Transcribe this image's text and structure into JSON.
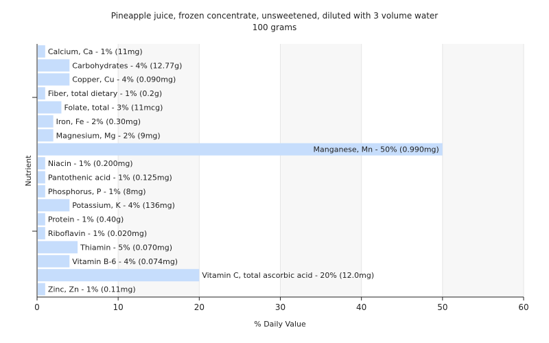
{
  "chart_data": {
    "type": "bar",
    "orientation": "horizontal",
    "title": "Pineapple juice, frozen concentrate, unsweetened, diluted with 3 volume water",
    "subtitle": "100 grams",
    "xlabel": "% Daily Value",
    "ylabel": "Nutrient",
    "xlim": [
      0,
      60
    ],
    "xticks": [
      0,
      10,
      20,
      30,
      40,
      50,
      60
    ],
    "grid": true,
    "bar_color": "#c6ddfc",
    "categories": [
      "Calcium, Ca",
      "Carbohydrates",
      "Copper, Cu",
      "Fiber, total dietary",
      "Folate, total",
      "Iron, Fe",
      "Magnesium, Mg",
      "Manganese, Mn",
      "Niacin",
      "Pantothenic acid",
      "Phosphorus, P",
      "Potassium, K",
      "Protein",
      "Riboflavin",
      "Thiamin",
      "Vitamin B-6",
      "Vitamin C, total ascorbic acid",
      "Zinc, Zn"
    ],
    "values": [
      1,
      4,
      4,
      1,
      3,
      2,
      2,
      50,
      1,
      1,
      1,
      4,
      1,
      1,
      5,
      4,
      20,
      1
    ],
    "labels": [
      "Calcium, Ca - 1% (11mg)",
      "Carbohydrates - 4% (12.77g)",
      "Copper, Cu - 4% (0.090mg)",
      "Fiber, total dietary - 1% (0.2g)",
      "Folate, total - 3% (11mcg)",
      "Iron, Fe - 2% (0.30mg)",
      "Magnesium, Mg - 2% (9mg)",
      "Manganese, Mn - 50% (0.990mg)",
      "Niacin - 1% (0.200mg)",
      "Pantothenic acid - 1% (0.125mg)",
      "Phosphorus, P - 1% (8mg)",
      "Potassium, K - 4% (136mg)",
      "Protein - 1% (0.40g)",
      "Riboflavin - 1% (0.020mg)",
      "Thiamin - 5% (0.070mg)",
      "Vitamin B-6 - 4% (0.074mg)",
      "Vitamin C, total ascorbic acid - 20% (12.0mg)",
      "Zinc, Zn - 1% (0.11mg)"
    ]
  }
}
